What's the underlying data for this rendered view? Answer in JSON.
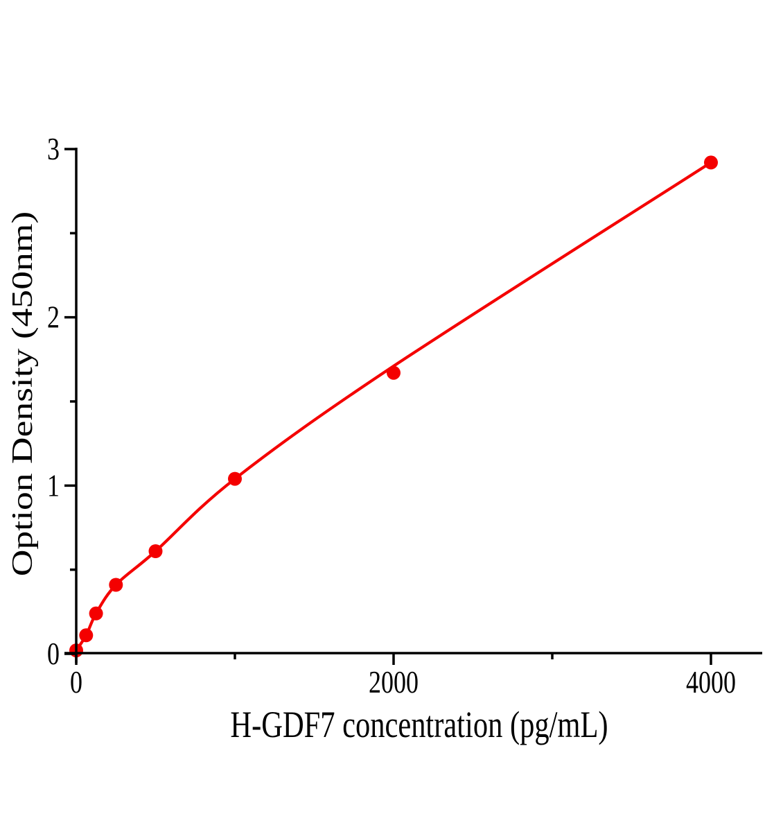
{
  "chart_data": {
    "type": "scatter",
    "title": "",
    "xlabel": "H-GDF7 concentration (pg/mL)",
    "ylabel": "Option Density (450nm)",
    "x": [
      0,
      62.5,
      125,
      250,
      500,
      1000,
      2000,
      4000
    ],
    "y": [
      0.02,
      0.11,
      0.24,
      0.41,
      0.61,
      1.04,
      1.67,
      2.92
    ],
    "curve_y": [
      0.02,
      0.11,
      0.24,
      0.41,
      0.61,
      1.04,
      1.71,
      2.92
    ],
    "curve_style": "smooth-fit-line",
    "marker": "filled-circle",
    "xlim": [
      0,
      4320
    ],
    "ylim": [
      0,
      3
    ],
    "x_ticks": {
      "major": [
        0,
        2000,
        4000
      ],
      "minor": [
        1000,
        3000
      ],
      "labels": [
        "0",
        "2000",
        "4000"
      ]
    },
    "y_ticks": {
      "major": [
        0,
        1,
        2,
        3
      ],
      "minor": [
        0.5,
        1.5,
        2.5
      ],
      "labels": [
        "0",
        "1",
        "2",
        "3"
      ]
    },
    "grid": false,
    "legend": "none",
    "colors": {
      "data": "#f40000",
      "axis": "#000000",
      "text": "#000000",
      "background": "#ffffff"
    }
  }
}
